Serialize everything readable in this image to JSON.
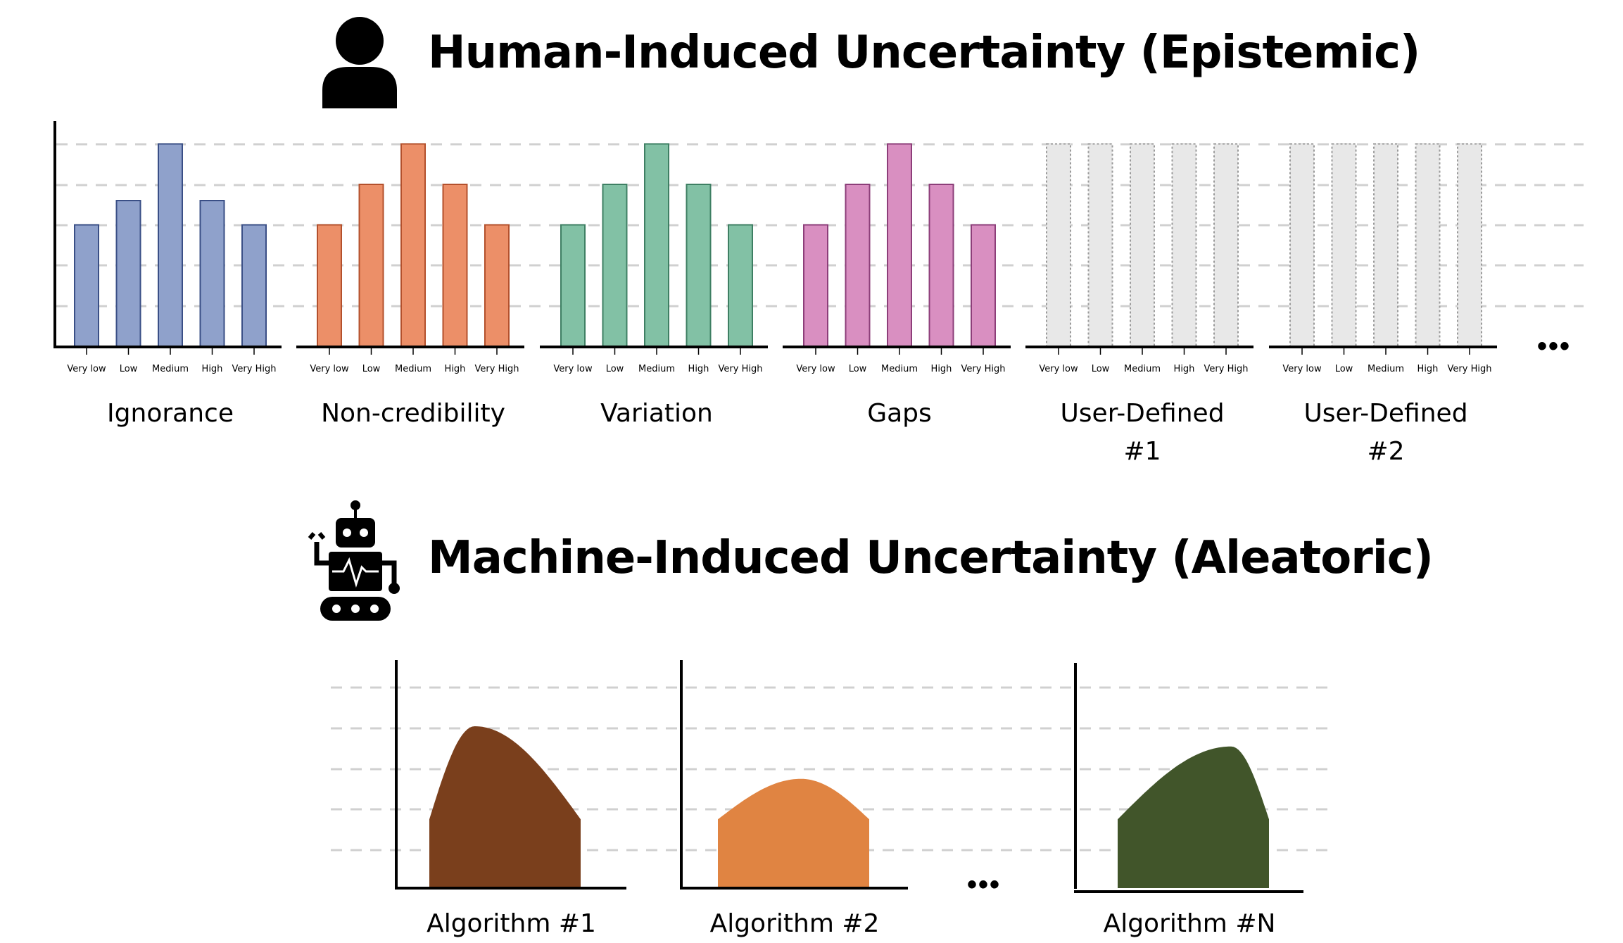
{
  "human": {
    "title": "Human-Induced Uncertainty (Epistemic)",
    "icon": "person-icon",
    "categories": [
      "Very low",
      "Low",
      "Medium",
      "High",
      "Very High"
    ],
    "charts": [
      {
        "label": "Ignorance",
        "values": [
          3,
          3.6,
          5,
          3.6,
          3
        ],
        "fill": "#8fa1cb",
        "stroke": "#3a4f86",
        "placeholder": false
      },
      {
        "label": "Non-credibility",
        "values": [
          3,
          4,
          5,
          4,
          3
        ],
        "fill": "#ec8f68",
        "stroke": "#b3502c",
        "placeholder": false
      },
      {
        "label": "Variation",
        "values": [
          3,
          4,
          5,
          4,
          3
        ],
        "fill": "#82c1a5",
        "stroke": "#3e7f63",
        "placeholder": false
      },
      {
        "label": "Gaps",
        "values": [
          3,
          4,
          5,
          4,
          3
        ],
        "fill": "#d98fc1",
        "stroke": "#8c3e79",
        "placeholder": false
      },
      {
        "label": "User-Defined\n#1",
        "values": [
          5,
          5,
          5,
          5,
          5
        ],
        "fill": "#e8e8e8",
        "stroke": "#9a9a9a",
        "placeholder": true
      },
      {
        "label": "User-Defined\n#2",
        "values": [
          5,
          5,
          5,
          5,
          5
        ],
        "fill": "#e8e8e8",
        "stroke": "#9a9a9a",
        "placeholder": true
      }
    ],
    "ellipsis": "•••"
  },
  "machine": {
    "title": "Machine-Induced Uncertainty (Aleatoric)",
    "icon": "robot-icon",
    "algorithms": [
      {
        "label": "Algorithm #1",
        "color": "#7a3f1c",
        "peak": 0.3,
        "height": 4.0
      },
      {
        "label": "Algorithm #2",
        "color": "#e08442",
        "peak": 0.55,
        "height": 2.7
      },
      {
        "label": "Algorithm #N",
        "color": "#41552a",
        "peak": 0.75,
        "height": 3.5
      }
    ],
    "ellipsis": "•••"
  }
}
